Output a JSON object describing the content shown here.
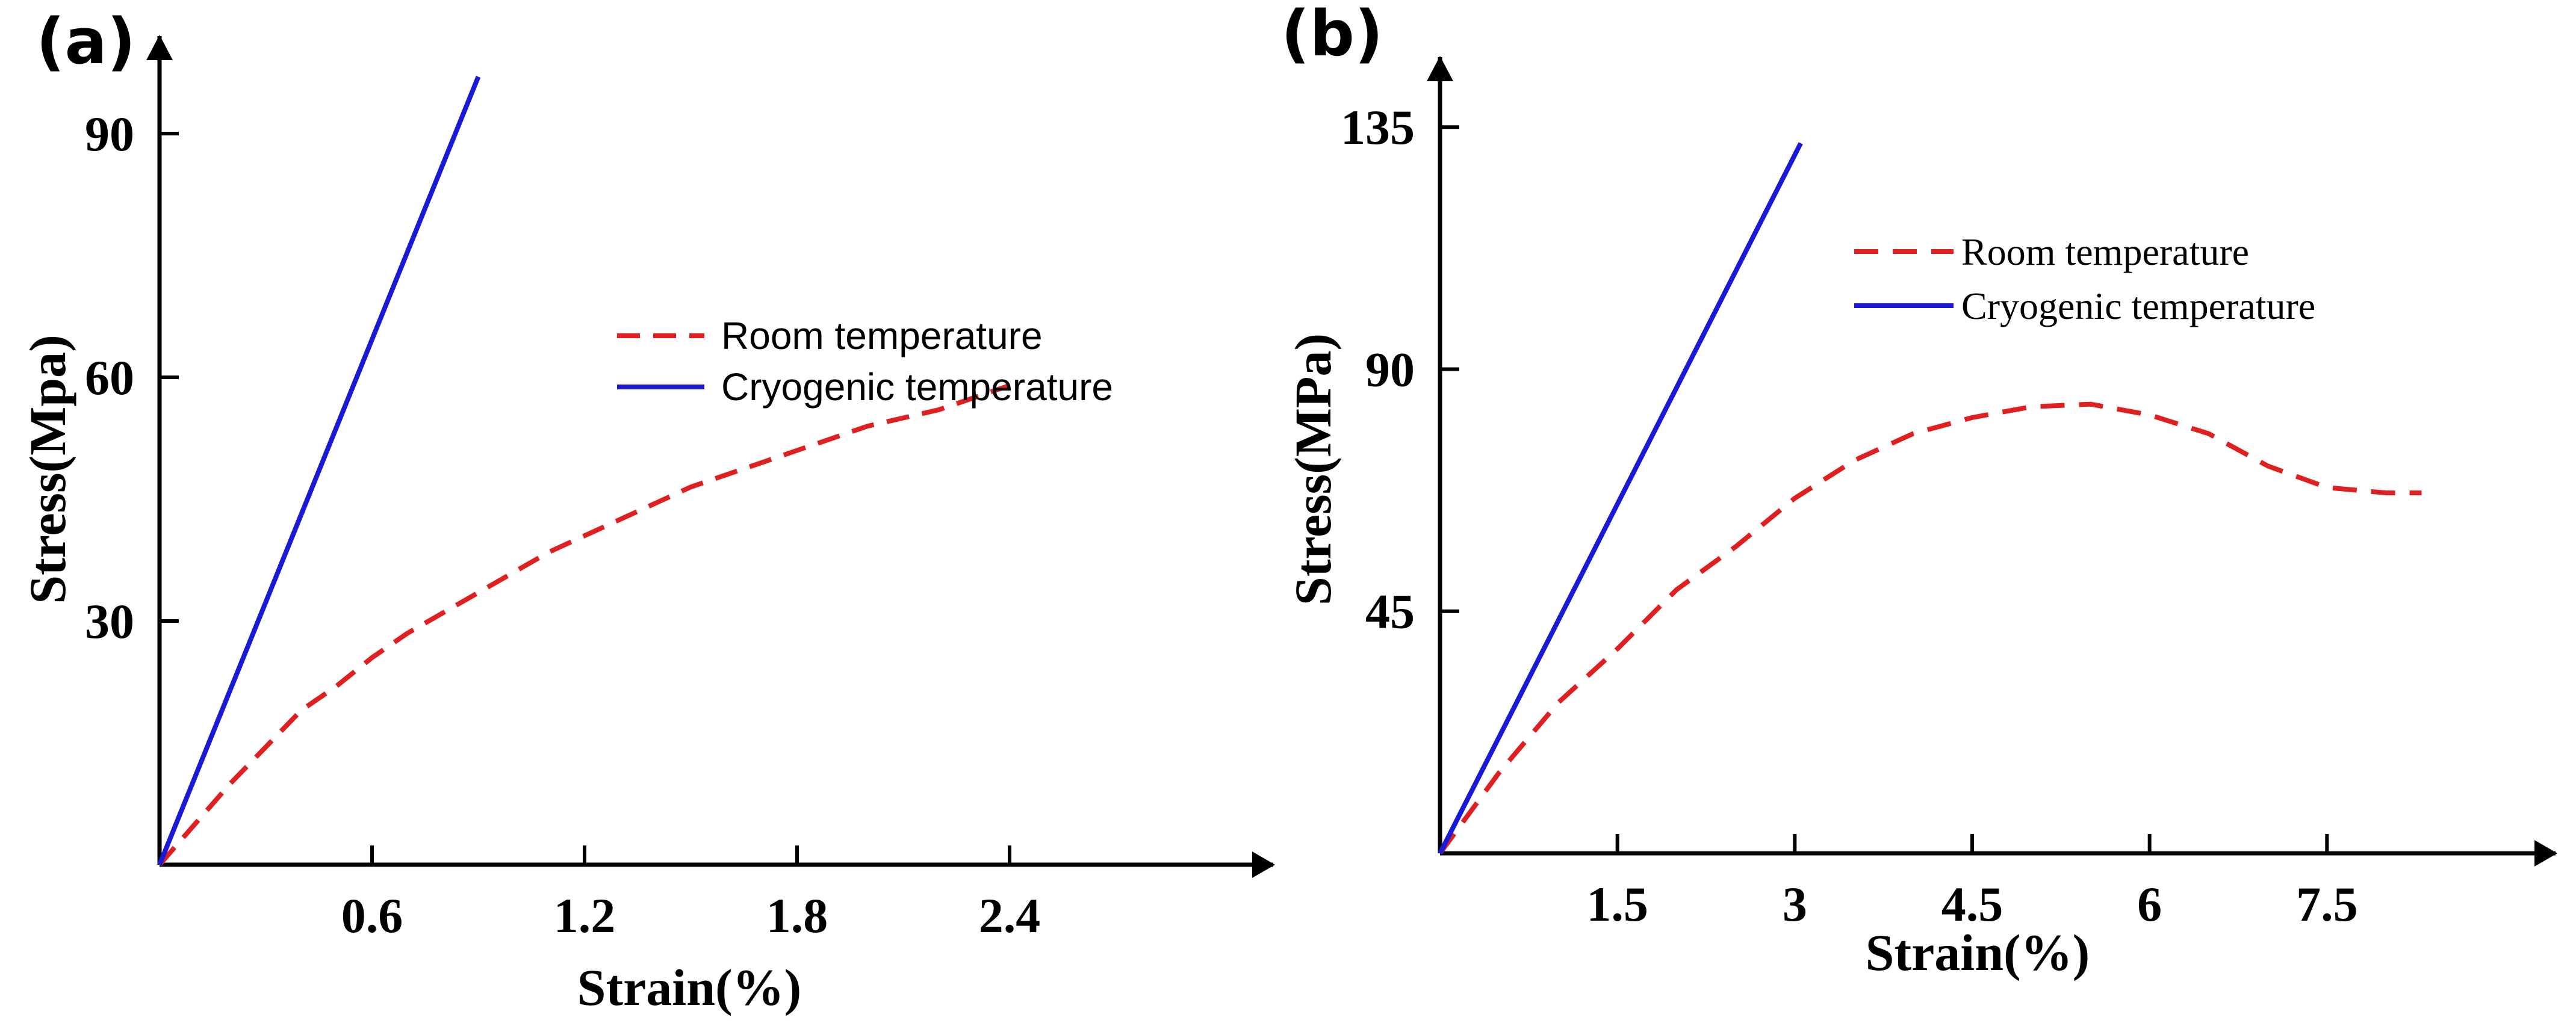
{
  "chart_data": [
    {
      "panel_label": "(a)",
      "type": "line",
      "xlabel": "Strain(%)",
      "ylabel": "Stress(Mpa)",
      "xlim": [
        0,
        3.0
      ],
      "ylim": [
        0,
        102
      ],
      "xticks": [
        0.6,
        1.2,
        1.8,
        2.4
      ],
      "xtick_labels": [
        "0.6",
        "1.2",
        "1.8",
        "2.4"
      ],
      "yticks": [
        30,
        60,
        90
      ],
      "ytick_labels": [
        "30",
        "60",
        "90"
      ],
      "legend_position": "center-right",
      "series": [
        {
          "name": "Room temperature",
          "style": "dashed",
          "color": "#e02020",
          "x": [
            0,
            0.1,
            0.2,
            0.3,
            0.4,
            0.5,
            0.6,
            0.7,
            0.8,
            0.9,
            1.0,
            1.1,
            1.2,
            1.3,
            1.4,
            1.5,
            1.6,
            1.7,
            1.8,
            1.9,
            2.0,
            2.1,
            2.2,
            2.3,
            2.4
          ],
          "y": [
            0,
            5,
            10,
            14.5,
            19,
            22,
            25.5,
            28.5,
            31,
            33.5,
            36,
            38.5,
            40.5,
            42.5,
            44.5,
            46.5,
            48,
            49.5,
            51,
            52.5,
            54,
            55,
            56,
            57.5,
            59
          ]
        },
        {
          "name": "Cryogenic temperature",
          "style": "solid",
          "color": "#1a1ad6",
          "x": [
            0,
            0.9
          ],
          "y": [
            0,
            97
          ]
        }
      ]
    },
    {
      "panel_label": "(b)",
      "type": "line",
      "xlabel": "Strain(%)",
      "ylabel": "Stress(MPa)",
      "xlim": [
        0,
        9.0
      ],
      "ylim": [
        0,
        148
      ],
      "xticks": [
        1.5,
        3,
        4.5,
        6,
        7.5
      ],
      "xtick_labels": [
        "1.5",
        "3",
        "4.5",
        "6",
        "7.5"
      ],
      "yticks": [
        45,
        90,
        135
      ],
      "ytick_labels": [
        "45",
        "90",
        "135"
      ],
      "legend_position": "top-right",
      "series": [
        {
          "name": "Room temperature",
          "style": "dashed",
          "color": "#e02020",
          "x": [
            0,
            0.5,
            1.0,
            1.5,
            2.0,
            2.5,
            3.0,
            3.5,
            4.0,
            4.5,
            5.0,
            5.5,
            6.0,
            6.5,
            7.0,
            7.5,
            8.0,
            8.3
          ],
          "y": [
            0,
            15,
            28,
            38,
            49,
            57,
            66,
            73,
            78,
            81,
            83,
            83.5,
            81.5,
            78,
            72,
            68,
            67,
            67
          ]
        },
        {
          "name": "Cryogenic temperature",
          "style": "solid",
          "color": "#1a1ad6",
          "x": [
            0,
            3.05
          ],
          "y": [
            0,
            132
          ]
        }
      ]
    }
  ]
}
